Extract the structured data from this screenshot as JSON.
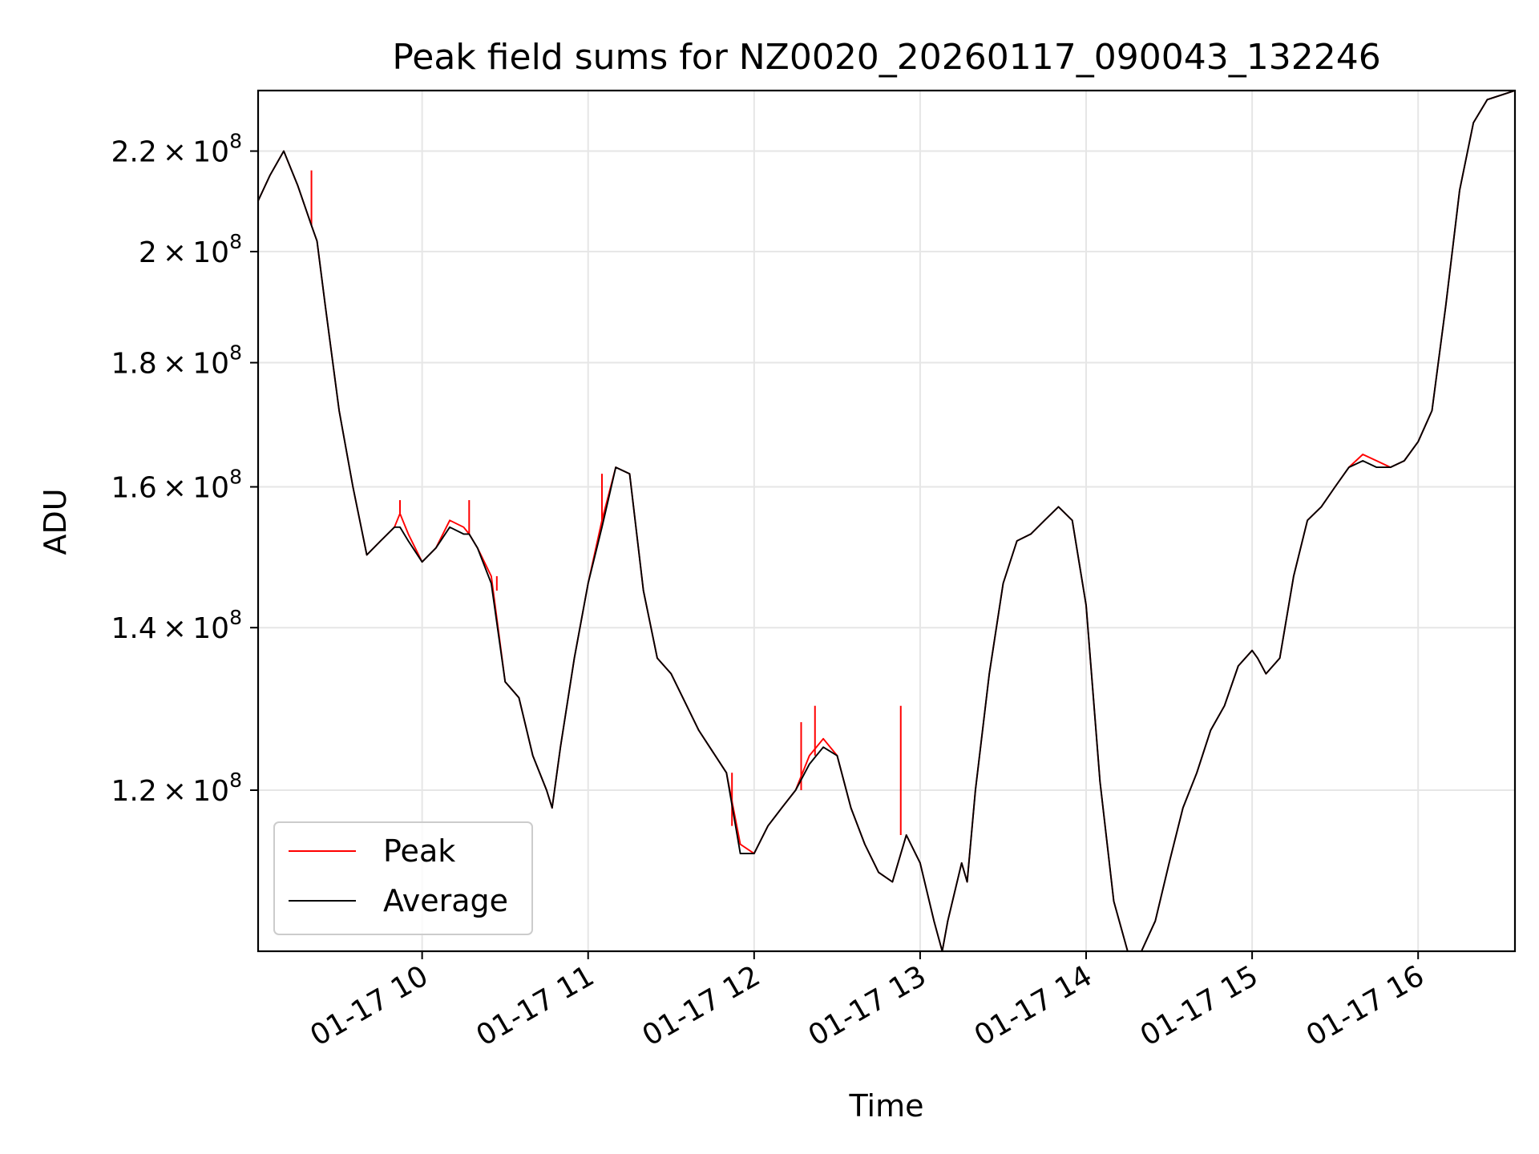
{
  "chart_data": {
    "type": "line",
    "title": "Peak field sums for NZ0020_20260117_090043_132246",
    "xlabel": "Time",
    "ylabel": "ADU",
    "yscale": "log",
    "grid": true,
    "legend_position": "lower-left",
    "x_ticks": [
      "01-17 10",
      "01-17 11",
      "01-17 12",
      "01-17 13",
      "01-17 14",
      "01-17 15",
      "01-17 16"
    ],
    "y_ticks": [
      {
        "value": 120000000,
        "mantissa": "1.2",
        "base": "10",
        "exponent": "8"
      },
      {
        "value": 140000000,
        "mantissa": "1.4",
        "base": "10",
        "exponent": "8"
      },
      {
        "value": 160000000,
        "mantissa": "1.6",
        "base": "10",
        "exponent": "8"
      },
      {
        "value": 180000000,
        "mantissa": "1.8",
        "base": "10",
        "exponent": "8"
      },
      {
        "value": 200000000,
        "mantissa": "2",
        "base": "10",
        "exponent": "8"
      },
      {
        "value": 220000000,
        "mantissa": "2.2",
        "base": "10",
        "exponent": "8"
      }
    ],
    "xlim": [
      "2026-01-17 09:00:43",
      "2026-01-17 16:35:00"
    ],
    "ylim": [
      103000000,
      233000000
    ],
    "x_times": [
      "09:00",
      "09:05",
      "09:10",
      "09:15",
      "09:20",
      "09:22",
      "09:25",
      "09:30",
      "09:35",
      "09:40",
      "09:45",
      "09:50",
      "09:52",
      "09:55",
      "10:00",
      "10:05",
      "10:10",
      "10:15",
      "10:17",
      "10:20",
      "10:25",
      "10:30",
      "10:35",
      "10:40",
      "10:45",
      "10:47",
      "10:50",
      "10:55",
      "11:00",
      "11:05",
      "11:10",
      "11:15",
      "11:20",
      "11:25",
      "11:30",
      "11:40",
      "11:50",
      "11:55",
      "12:00",
      "12:05",
      "12:10",
      "12:15",
      "12:20",
      "12:25",
      "12:30",
      "12:35",
      "12:40",
      "12:45",
      "12:50",
      "12:55",
      "13:00",
      "13:05",
      "13:08",
      "13:10",
      "13:15",
      "13:17",
      "13:20",
      "13:25",
      "13:30",
      "13:35",
      "13:40",
      "13:45",
      "13:50",
      "13:55",
      "14:00",
      "14:05",
      "14:10",
      "14:15",
      "14:18",
      "14:20",
      "14:25",
      "14:30",
      "14:35",
      "14:40",
      "14:45",
      "14:50",
      "14:55",
      "15:00",
      "15:02",
      "15:05",
      "15:10",
      "15:15",
      "15:20",
      "15:25",
      "15:30",
      "15:35",
      "15:40",
      "15:45",
      "15:50",
      "15:55",
      "16:00",
      "16:05",
      "16:10",
      "16:15",
      "16:20",
      "16:25",
      "16:30",
      "16:35"
    ],
    "series": [
      {
        "name": "Peak",
        "color": "#ff0000",
        "width": 1.2,
        "values": [
          209000000,
          215000000,
          220000000,
          213000000,
          205000000,
          202000000,
          190000000,
          172000000,
          160000000,
          150000000,
          152000000,
          154000000,
          156000000,
          153000000,
          149000000,
          151000000,
          155000000,
          154000000,
          153000000,
          151000000,
          147000000,
          133000000,
          131000000,
          124000000,
          120000000,
          118000000,
          125000000,
          136000000,
          146000000,
          155000000,
          163000000,
          162000000,
          145000000,
          136000000,
          134000000,
          127000000,
          122000000,
          114000000,
          113000000,
          116000000,
          118000000,
          120000000,
          124000000,
          126000000,
          124000000,
          118000000,
          114000000,
          111000000,
          110000000,
          115000000,
          112000000,
          106000000,
          102000000,
          106000000,
          112000000,
          110000000,
          120000000,
          134000000,
          146000000,
          152000000,
          153000000,
          155000000,
          157000000,
          155000000,
          143000000,
          121000000,
          108000000,
          103000000,
          100000000,
          102000000,
          106000000,
          112000000,
          118000000,
          122000000,
          127000000,
          130000000,
          135000000,
          137000000,
          136000000,
          134000000,
          136000000,
          147000000,
          155000000,
          157000000,
          160000000,
          163000000,
          165000000,
          164000000,
          163000000,
          164000000,
          167000000,
          172000000,
          190000000,
          212000000,
          226000000,
          231000000,
          232000000,
          233000000
        ],
        "spikes": [
          {
            "time": "09:20",
            "value": 216000000
          },
          {
            "time": "09:52",
            "value": 158000000
          },
          {
            "time": "10:17",
            "value": 158000000
          },
          {
            "time": "10:27",
            "value": 145000000
          },
          {
            "time": "11:05",
            "value": 162000000
          },
          {
            "time": "11:52",
            "value": 116000000
          },
          {
            "time": "12:17",
            "value": 128000000
          },
          {
            "time": "12:22",
            "value": 130000000
          },
          {
            "time": "12:53",
            "value": 130000000
          }
        ]
      },
      {
        "name": "Average",
        "color": "#000000",
        "width": 1.2,
        "values": [
          209000000,
          215000000,
          220000000,
          213000000,
          205000000,
          202000000,
          190000000,
          172000000,
          160000000,
          150000000,
          152000000,
          154000000,
          154000000,
          152000000,
          149000000,
          151000000,
          154000000,
          153000000,
          153000000,
          151000000,
          146000000,
          133000000,
          131000000,
          124000000,
          120000000,
          118000000,
          125000000,
          136000000,
          146000000,
          154000000,
          163000000,
          162000000,
          145000000,
          136000000,
          134000000,
          127000000,
          122000000,
          113000000,
          113000000,
          116000000,
          118000000,
          120000000,
          123000000,
          125000000,
          124000000,
          118000000,
          114000000,
          111000000,
          110000000,
          115000000,
          112000000,
          106000000,
          102000000,
          106000000,
          112000000,
          110000000,
          120000000,
          134000000,
          146000000,
          152000000,
          153000000,
          155000000,
          157000000,
          155000000,
          143000000,
          121000000,
          108000000,
          103000000,
          100000000,
          102000000,
          106000000,
          112000000,
          118000000,
          122000000,
          127000000,
          130000000,
          135000000,
          137000000,
          136000000,
          134000000,
          136000000,
          147000000,
          155000000,
          157000000,
          160000000,
          163000000,
          164000000,
          163000000,
          163000000,
          164000000,
          167000000,
          172000000,
          190000000,
          212000000,
          226000000,
          231000000,
          232000000,
          233000000
        ]
      }
    ]
  }
}
